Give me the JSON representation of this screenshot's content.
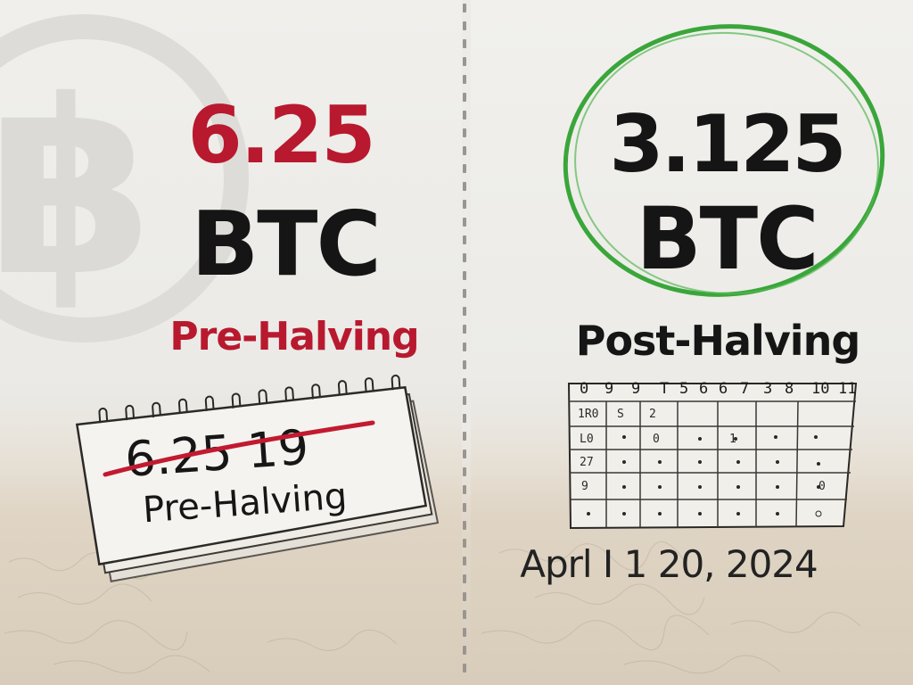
{
  "left_panel": {
    "amount": "6.25",
    "unit": "BTC",
    "phase": "Pre-Halving",
    "calendar": {
      "number": "6.25 19",
      "label": "Pre-Halving"
    }
  },
  "right_panel": {
    "amount": "3.125",
    "unit": "BTC",
    "phase": "Post-Halving",
    "calendar": {
      "header": [
        "0",
        "9",
        "9",
        "T",
        "5",
        "6",
        "6",
        "7",
        "3",
        "8",
        "10",
        "11"
      ],
      "cells": [
        "1R0",
        "S",
        "2",
        "L0",
        "0",
        "1",
        "27",
        "9",
        "0"
      ]
    },
    "date": "Aprl I 1 20, 2024"
  },
  "colors": {
    "pre_accent": "#b8192e",
    "post_accent": "#3aa63a",
    "ink": "#151515",
    "paper": "#eeede9",
    "sand": "#dcd1c1"
  }
}
